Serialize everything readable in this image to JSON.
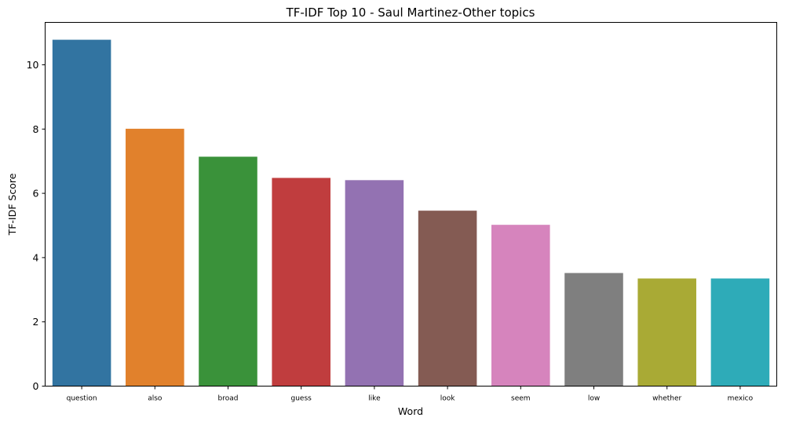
{
  "chart_data": {
    "type": "bar",
    "title": "TF-IDF Top 10 - Saul Martinez-Other topics",
    "xlabel": "Word",
    "ylabel": "TF-IDF Score",
    "categories": [
      "question",
      "also",
      "broad",
      "guess",
      "like",
      "look",
      "seem",
      "low",
      "whether",
      "mexico"
    ],
    "values": [
      10.78,
      8.01,
      7.14,
      6.48,
      6.41,
      5.46,
      5.02,
      3.52,
      3.35,
      3.35
    ],
    "colors": [
      "#3274a1",
      "#e1812c",
      "#3a923a",
      "#c03d3e",
      "#9372b2",
      "#845b53",
      "#d684bd",
      "#7f7f7f",
      "#a9aa35",
      "#2eabb8"
    ],
    "ylim": [
      0,
      11.32
    ],
    "yticks": [
      0,
      2,
      4,
      6,
      8,
      10
    ],
    "grid": false,
    "legend": "none"
  }
}
